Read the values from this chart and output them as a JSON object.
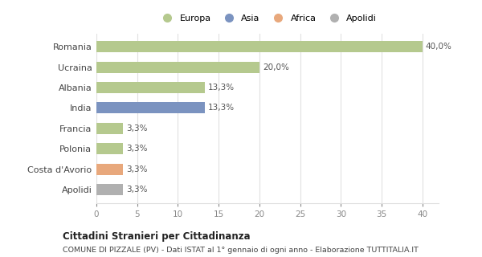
{
  "categories": [
    "Romania",
    "Ucraina",
    "Albania",
    "India",
    "Francia",
    "Polonia",
    "Costa d'Avorio",
    "Apolidi"
  ],
  "values": [
    40.0,
    20.0,
    13.3,
    13.3,
    3.3,
    3.3,
    3.3,
    3.3
  ],
  "colors": [
    "#b5c98e",
    "#b5c98e",
    "#b5c98e",
    "#7b93c0",
    "#b5c98e",
    "#b5c98e",
    "#e8a87c",
    "#b0b0b0"
  ],
  "bar_labels": [
    "40,0%",
    "20,0%",
    "13,3%",
    "13,3%",
    "3,3%",
    "3,3%",
    "3,3%",
    "3,3%"
  ],
  "legend": [
    {
      "label": "Europa",
      "color": "#b5c98e"
    },
    {
      "label": "Asia",
      "color": "#7b93c0"
    },
    {
      "label": "Africa",
      "color": "#e8a87c"
    },
    {
      "label": "Apolidi",
      "color": "#b0b0b0"
    }
  ],
  "xlim": [
    0,
    42
  ],
  "xticks": [
    0,
    5,
    10,
    15,
    20,
    25,
    30,
    35,
    40
  ],
  "title_main": "Cittadini Stranieri per Cittadinanza",
  "title_sub": "COMUNE DI PIZZALE (PV) - Dati ISTAT al 1° gennaio di ogni anno - Elaborazione TUTTITALIA.IT",
  "bg_color": "#ffffff",
  "grid_color": "#e0e0e0",
  "bar_height": 0.55,
  "label_fontsize": 7.5,
  "ytick_fontsize": 8,
  "xtick_fontsize": 7.5
}
